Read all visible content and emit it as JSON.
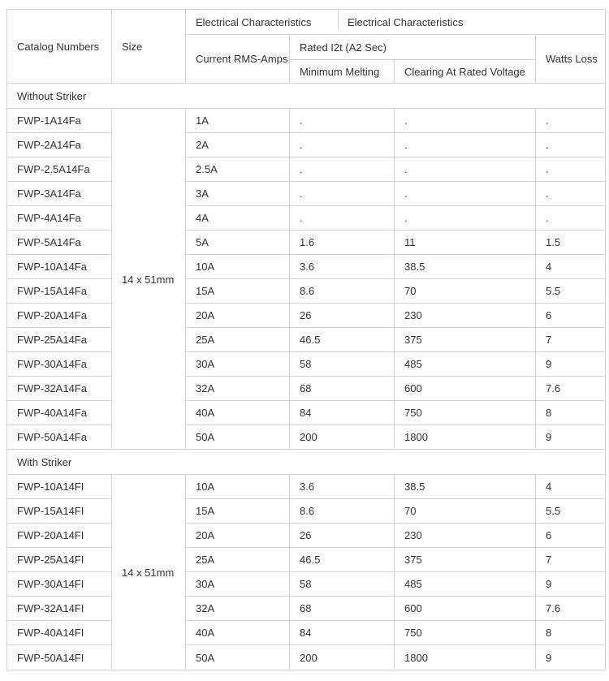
{
  "colors": {
    "border": "#d4d4d4",
    "text": "#333333",
    "background": "#ffffff"
  },
  "table": {
    "header": {
      "catalog": "Catalog Numbers",
      "size": "Size",
      "elec1": "Electrical Characteristics",
      "elec2": "Electrical Characteristics",
      "current": "Current RMS-Amps",
      "rated_i2t": "Rated I2t (A2 Sec)",
      "min_melting": "Minimum Melting",
      "clearing": "Clearing At Rated Voltage",
      "watts": "Watts Loss"
    },
    "sections": [
      {
        "title": "Without Striker",
        "size": "14 x 51mm",
        "rows": [
          {
            "catalog": "FWP-1A14Fa",
            "current": "1A",
            "melting": ".",
            "clearing": ".",
            "watts": "."
          },
          {
            "catalog": "FWP-2A14Fa",
            "current": "2A",
            "melting": ".",
            "clearing": ".",
            "watts": "."
          },
          {
            "catalog": "FWP-2.5A14Fa",
            "current": "2.5A",
            "melting": ".",
            "clearing": ".",
            "watts": "."
          },
          {
            "catalog": "FWP-3A14Fa",
            "current": "3A",
            "melting": ".",
            "clearing": ".",
            "watts": "."
          },
          {
            "catalog": "FWP-4A14Fa",
            "current": "4A",
            "melting": ".",
            "clearing": ".",
            "watts": "."
          },
          {
            "catalog": "FWP-5A14Fa",
            "current": "5A",
            "melting": "1.6",
            "clearing": "11",
            "watts": "1.5"
          },
          {
            "catalog": "FWP-10A14Fa",
            "current": "10A",
            "melting": "3.6",
            "clearing": "38.5",
            "watts": "4"
          },
          {
            "catalog": "FWP-15A14Fa",
            "current": "15A",
            "melting": "8.6",
            "clearing": "70",
            "watts": "5.5"
          },
          {
            "catalog": "FWP-20A14Fa",
            "current": "20A",
            "melting": "26",
            "clearing": "230",
            "watts": "6"
          },
          {
            "catalog": "FWP-25A14Fa",
            "current": "25A",
            "melting": "46.5",
            "clearing": "375",
            "watts": "7"
          },
          {
            "catalog": "FWP-30A14Fa",
            "current": "30A",
            "melting": "58",
            "clearing": "485",
            "watts": "9"
          },
          {
            "catalog": "FWP-32A14Fa",
            "current": "32A",
            "melting": "68",
            "clearing": "600",
            "watts": "7.6"
          },
          {
            "catalog": "FWP-40A14Fa",
            "current": "40A",
            "melting": "84",
            "clearing": "750",
            "watts": "8"
          },
          {
            "catalog": "FWP-50A14Fa",
            "current": "50A",
            "melting": "200",
            "clearing": "1800",
            "watts": "9"
          }
        ]
      },
      {
        "title": "With Striker",
        "size": "14 x 51mm",
        "rows": [
          {
            "catalog": "FWP-10A14FI",
            "current": "10A",
            "melting": "3.6",
            "clearing": "38.5",
            "watts": "4"
          },
          {
            "catalog": "FWP-15A14FI",
            "current": "15A",
            "melting": "8.6",
            "clearing": "70",
            "watts": "5.5"
          },
          {
            "catalog": "FWP-20A14FI",
            "current": "20A",
            "melting": "26",
            "clearing": "230",
            "watts": "6"
          },
          {
            "catalog": "FWP-25A14FI",
            "current": "25A",
            "melting": "46.5",
            "clearing": "375",
            "watts": "7"
          },
          {
            "catalog": "FWP-30A14FI",
            "current": "30A",
            "melting": "58",
            "clearing": "485",
            "watts": "9"
          },
          {
            "catalog": "FWP-32A14FI",
            "current": "32A",
            "melting": "68",
            "clearing": "600",
            "watts": "7.6"
          },
          {
            "catalog": "FWP-40A14FI",
            "current": "40A",
            "melting": "84",
            "clearing": "750",
            "watts": "8"
          },
          {
            "catalog": "FWP-50A14FI",
            "current": "50A",
            "melting": "200",
            "clearing": "1800",
            "watts": "9"
          }
        ]
      }
    ]
  }
}
